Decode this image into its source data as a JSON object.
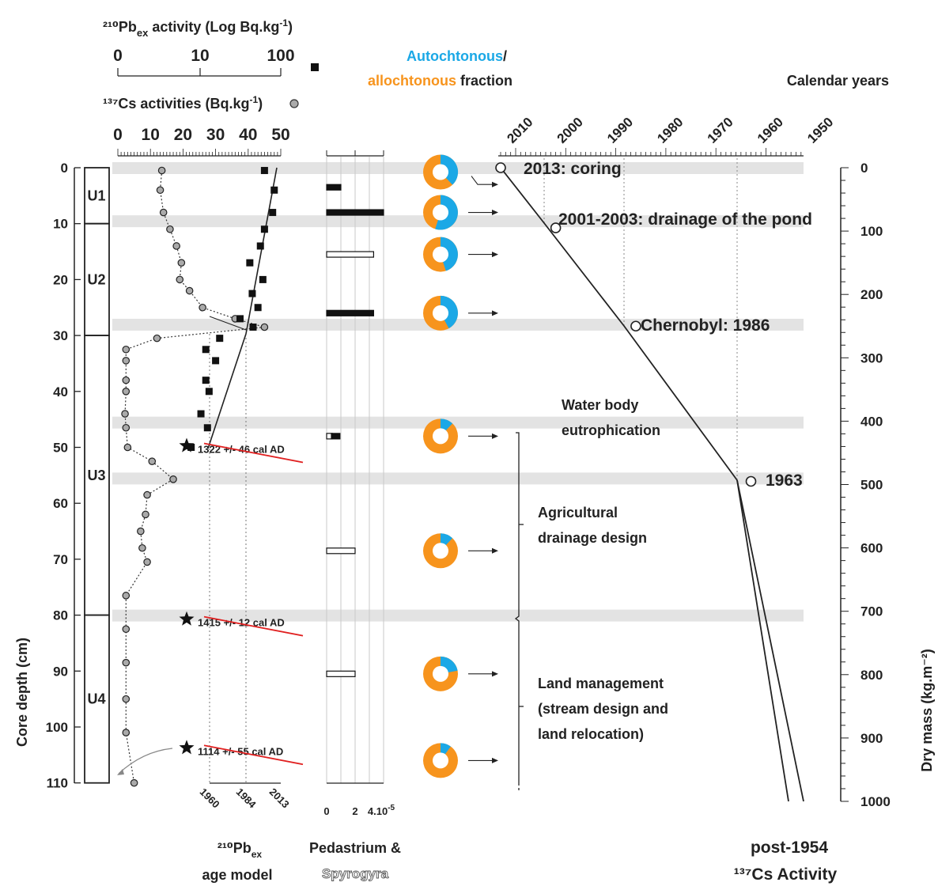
{
  "chart_data": {
    "type": "scatter",
    "left_axis": {
      "label": "Core depth (cm)",
      "ticks": [
        "0",
        "10",
        "20",
        "30",
        "40",
        "50",
        "60",
        "70",
        "80",
        "90",
        "100",
        "110"
      ],
      "range": [
        0,
        110
      ]
    },
    "right_axis": {
      "label": "Dry mass (kg.m⁻²)",
      "ticks": [
        "0",
        "100",
        "200",
        "300",
        "400",
        "500",
        "600",
        "700",
        "800",
        "900",
        "1000"
      ],
      "range": [
        0,
        1000
      ]
    },
    "units": [
      {
        "name": "U1",
        "from": 0,
        "to": 10
      },
      {
        "name": "U2",
        "from": 10,
        "to": 30
      },
      {
        "name": "U3",
        "from": 30,
        "to": 80
      },
      {
        "name": "U4",
        "from": 80,
        "to": 110
      }
    ],
    "pb_axis": {
      "title_lines": [
        "²¹⁰Pb",
        "ex",
        " activity  (Log Bq.kg",
        "-1",
        ")"
      ],
      "ticks": [
        "0",
        "10",
        "100"
      ]
    },
    "cs_axis": {
      "title_lines": [
        "¹³⁷Cs activities  (Bq.kg",
        "-1",
        ")"
      ],
      "ticks": [
        "0",
        "10",
        "20",
        "30",
        "40",
        "50"
      ],
      "range": [
        0,
        50
      ]
    },
    "cs_series": {
      "name": "137Cs",
      "depth": [
        0.5,
        4,
        8,
        11,
        14,
        17,
        20,
        22,
        25,
        27,
        28.5,
        30.5,
        32.5,
        34.5,
        38,
        40,
        44,
        46.5,
        50,
        52.5,
        55.7,
        58.5,
        62,
        65,
        68,
        70.5,
        76.5,
        82.5,
        88.5,
        95,
        101,
        110
      ],
      "values": [
        13.5,
        13,
        14,
        16,
        18,
        19.5,
        19,
        22,
        26,
        36,
        45,
        12,
        2.5,
        2.5,
        2.5,
        2.5,
        2.2,
        2.5,
        3,
        10.5,
        17,
        9,
        8.5,
        7,
        7.5,
        9,
        2.5,
        2.5,
        2.5,
        2.5,
        2.5,
        5
      ]
    },
    "pb_series": {
      "name": "210Pbex",
      "depth": [
        0.5,
        4,
        8,
        11,
        14,
        17,
        20,
        22.5,
        25,
        27,
        28.5,
        30.5,
        32.5,
        34.5,
        38,
        40,
        44,
        46.5,
        50
      ],
      "values_log": [
        1.8,
        1.92,
        1.9,
        1.8,
        1.75,
        1.62,
        1.78,
        1.65,
        1.72,
        1.5,
        1.66,
        1.25,
        1.08,
        1.2,
        1.08,
        1.12,
        1.02,
        1.1,
        0.9
      ]
    },
    "age_model": {
      "ticks": [
        "1960",
        "1984",
        "2013"
      ],
      "title_lines": [
        "²¹⁰Pb",
        "ex",
        "age model"
      ]
    },
    "radiocarbon": [
      {
        "depth": 50,
        "label": "1322 +/- 46 cal AD"
      },
      {
        "depth": 81,
        "label": "1415 +/- 12 cal AD"
      },
      {
        "depth": 104,
        "label": "1114 +/- 55 cal AD"
      }
    ],
    "algae": {
      "axis_ticks": [
        "0",
        "2",
        "4.10"
      ],
      "axis_exp": "-5",
      "title_1": "Pedastrium &",
      "title_2": "Spyrogyra",
      "bars": [
        {
          "depth": 3.5,
          "value": 1,
          "filled": true
        },
        {
          "depth": 8,
          "value": 4,
          "filled": true
        },
        {
          "depth": 15.5,
          "value": 3.3,
          "filled": false
        },
        {
          "depth": 26,
          "value": 3.3,
          "filled": true
        },
        {
          "depth": 48,
          "value": 0.4,
          "filled": false
        },
        {
          "depth": 48,
          "value": 0.6,
          "filled": true
        },
        {
          "depth": 68.5,
          "value": 2,
          "filled": false
        },
        {
          "depth": 90.5,
          "value": 2,
          "filled": false
        }
      ]
    },
    "fraction": {
      "title_1": "Autochtonous",
      "title_2": "/",
      "title_3": "allochtonous",
      "title_4": " fraction",
      "colors": {
        "autochtonous": "#1BA8E6",
        "allochtonous": "#F7941D"
      },
      "donuts": [
        {
          "depth": 0.5,
          "autochtonous": 0.38
        },
        {
          "depth": 8,
          "autochtonous": 0.55
        },
        {
          "depth": 15.5,
          "autochtonous": 0.45
        },
        {
          "depth": 26,
          "autochtonous": 0.42
        },
        {
          "depth": 48,
          "autochtonous": 0.12
        },
        {
          "depth": 68.5,
          "autochtonous": 0.12
        },
        {
          "depth": 90.5,
          "autochtonous": 0.22
        },
        {
          "depth": 106,
          "autochtonous": 0.1
        }
      ]
    },
    "calendar": {
      "title": "Calendar years",
      "ticks": [
        "2010",
        "2000",
        "1990",
        "1980",
        "1970",
        "1960",
        "1950"
      ],
      "points": [
        {
          "year": 2013,
          "dry_mass": 0,
          "label": "2013: coring"
        },
        {
          "year": 2002,
          "dry_mass": 95,
          "label": "2001-2003: drainage of the pond"
        },
        {
          "year": 1986,
          "dry_mass": 250,
          "label": "Chernobyl: 1986"
        },
        {
          "year": 1963,
          "dry_mass": 495,
          "label": "1963"
        }
      ],
      "bottom_1": "post-1954",
      "bottom_2": "¹³⁷Cs Activity"
    },
    "events": [
      {
        "label": "Water body",
        "label2": "eutrophication"
      },
      {
        "label": "Agricultural",
        "label2": "drainage design"
      },
      {
        "label": "Land management",
        "label2": "(stream design and",
        "label3": "land relocation)"
      }
    ],
    "gray_bands_depth": [
      0,
      9.5,
      28,
      45.5,
      55.5,
      80
    ]
  }
}
